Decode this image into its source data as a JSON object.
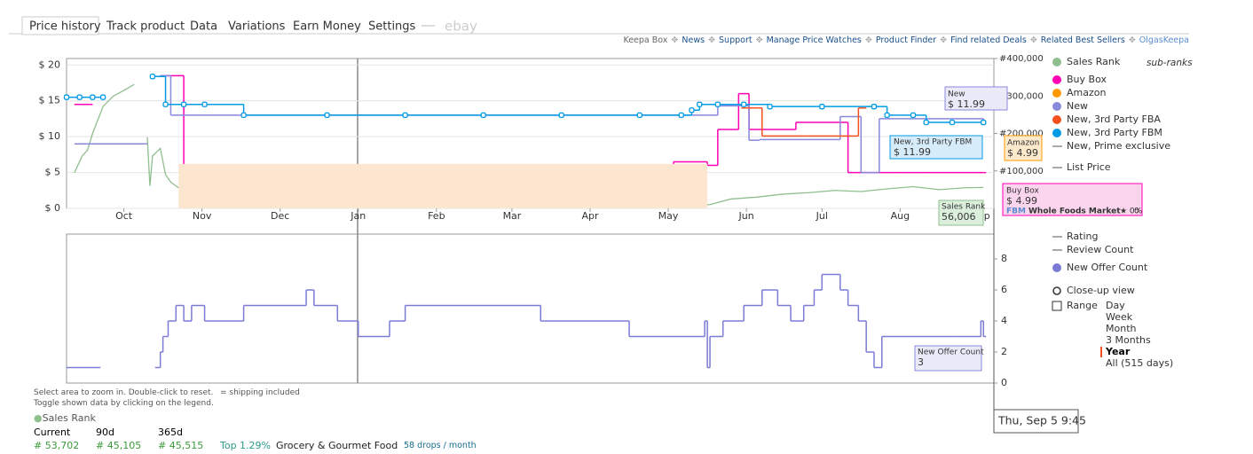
{
  "tabs": [
    "Price history",
    "Track product",
    "Data",
    "Variations",
    "Earn Money",
    "Settings",
    "ebay"
  ],
  "links": [
    "Keepa Box",
    "News",
    "Support",
    "Manage Price Watches",
    "Product Finder",
    "Find related Deals",
    "Related Best Sellers",
    "OlgasKeepa"
  ],
  "chart_data": [
    {
      "type": "line",
      "xlim": [
        0,
        356
      ],
      "xticks": [
        {
          "value": 22,
          "label": "Oct"
        },
        {
          "value": 52,
          "label": "Nov"
        },
        {
          "value": 82,
          "label": "Dec"
        },
        {
          "value": 112,
          "label": "Jan"
        },
        {
          "value": 142,
          "label": "Feb"
        },
        {
          "value": 171,
          "label": "Mar"
        },
        {
          "value": 201,
          "label": "Apr"
        },
        {
          "value": 231,
          "label": "May"
        },
        {
          "value": 261,
          "label": "Jun"
        },
        {
          "value": 290,
          "label": "Jul"
        },
        {
          "value": 320,
          "label": "Aug"
        },
        {
          "value": 351,
          "label": "Sep"
        }
      ],
      "ylim": [
        0,
        20.9
      ],
      "yticks": [
        {
          "value": 0,
          "label": "$ 0"
        },
        {
          "value": 5,
          "label": "$ 5"
        },
        {
          "value": 10,
          "label": "$ 10"
        },
        {
          "value": 15,
          "label": "$ 15"
        },
        {
          "value": 20,
          "label": "$ 20"
        }
      ],
      "y2lim": [
        0,
        400000
      ],
      "y2ticks": [
        {
          "value": 100000,
          "label": "#100,000"
        },
        {
          "value": 200000,
          "label": "#200,000"
        },
        {
          "value": 300000,
          "label": "#300,000"
        },
        {
          "value": 400000,
          "label": "#400,000"
        }
      ],
      "grid": true,
      "series": [
        {
          "name": "Sales Rank",
          "color": "#8fbf8f",
          "axis": "y2",
          "style": "line",
          "x": [
            3,
            6,
            8,
            10,
            14,
            18,
            22,
            26,
            29,
            31,
            32,
            33,
            36,
            38,
            40,
            44,
            48,
            52,
            55,
            60,
            70,
            90,
            120,
            160,
            200,
            240,
            247,
            255,
            265,
            275,
            285,
            295,
            305,
            315,
            325,
            335,
            345,
            352
          ],
          "values": [
            95000,
            140000,
            155000,
            200000,
            272000,
            300000,
            315000,
            331000,
            null,
            190000,
            60000,
            140000,
            160000,
            90000,
            70000,
            50000,
            40000,
            45000,
            25000,
            20000,
            15000,
            8000,
            6000,
            6000,
            7000,
            8000,
            10000,
            25000,
            30000,
            38000,
            42000,
            48000,
            45000,
            52000,
            58000,
            50000,
            55000,
            56006
          ]
        },
        {
          "name": "Buy Box",
          "color": "#ff00b4",
          "style": "step",
          "x": [
            3,
            9,
            10,
            36,
            45,
            220,
            221,
            230,
            233,
            246,
            248,
            250,
            258,
            262,
            270,
            280,
            300,
            320,
            330,
            352
          ],
          "values": [
            14.5,
            14.5,
            null,
            18.5,
            6,
            6,
            5,
            6,
            6.5,
            6,
            6,
            11,
            16,
            11,
            11,
            12,
            5,
            5,
            5,
            4.99
          ]
        },
        {
          "name": "Amazon",
          "color": "#ff9900",
          "fill": "#fde6cf",
          "style": "area",
          "x": [
            43,
            246
          ],
          "values": [
            6.2,
            6.2
          ]
        },
        {
          "name": "New",
          "color": "#8888dd",
          "style": "step",
          "x": [
            3,
            30,
            31,
            36,
            40,
            245,
            250,
            262,
            266,
            285,
            297,
            305,
            312,
            320,
            330,
            352
          ],
          "values": [
            9,
            9,
            null,
            18.5,
            13,
            13,
            14.3,
            9.5,
            9.6,
            9.6,
            12.8,
            5,
            12.5,
            12.5,
            12.5,
            11.99
          ]
        },
        {
          "name": "New, 3rd Party FBA",
          "color": "#f4511e",
          "style": "step",
          "x": [
            259,
            266,
            267,
            285,
            303,
            304,
            306
          ],
          "values": [
            14,
            14,
            10.1,
            10.1,
            10.1,
            14,
            14
          ]
        },
        {
          "name": "New, 3rd Party FBM",
          "color": "#039be5",
          "style": "markers",
          "x": [
            0,
            5,
            10,
            14,
            16,
            33,
            38,
            45,
            53,
            68,
            100,
            130,
            160,
            190,
            220,
            236,
            240,
            243,
            250,
            260,
            270,
            290,
            310,
            315,
            325,
            330,
            340,
            352
          ],
          "values": [
            15.5,
            15.5,
            15.5,
            15.5,
            null,
            18.4,
            14.5,
            14.5,
            14.5,
            13,
            13,
            13,
            13,
            13,
            13,
            13,
            13.7,
            14.5,
            14.5,
            14.5,
            14.2,
            14.2,
            14.2,
            13,
            13,
            12,
            12,
            11.99
          ]
        }
      ],
      "legend_extra": [
        "New, Prime exclusive",
        "List Price"
      ]
    },
    {
      "type": "line",
      "xlim": [
        0,
        356
      ],
      "ylim": [
        0,
        9.6
      ],
      "yticks": [
        0,
        2,
        4,
        6,
        8
      ],
      "grid": false,
      "series": [
        {
          "name": "New Offer Count",
          "color": "#7b7bd6",
          "style": "step",
          "x": [
            0,
            12,
            13,
            34,
            36,
            37,
            39,
            42,
            45,
            48,
            53,
            68,
            92,
            95,
            104,
            112,
            124,
            130,
            182,
            216,
            245,
            246,
            247,
            252,
            260,
            267,
            273,
            278,
            283,
            287,
            290,
            297,
            300,
            304,
            307,
            310,
            313,
            340,
            351,
            352
          ],
          "values": [
            1,
            1,
            null,
            1,
            2,
            3,
            4,
            5,
            4,
            5,
            4,
            5,
            6,
            5,
            4,
            3,
            4,
            5,
            4,
            3,
            4,
            1,
            3,
            4,
            5,
            6,
            5,
            4,
            5,
            6,
            7,
            6,
            5,
            4,
            2,
            1,
            3,
            3,
            4,
            3
          ]
        }
      ],
      "legend_extra": [
        "Rating",
        "Review Count"
      ]
    }
  ],
  "sub_ranks": "sub-ranks",
  "closeup": "Close-up view",
  "range_label": "Range",
  "ranges": [
    "Day",
    "Week",
    "Month",
    "3 Months",
    "Year",
    "All (515 days)"
  ],
  "range_selected": 4,
  "tooltips": {
    "new": {
      "title": "New",
      "price": "$ 11.99"
    },
    "fbm": {
      "title": "New, 3rd Party FBM",
      "price": "$ 11.99"
    },
    "amazon": {
      "title": "Amazon",
      "price": "$ 4.99"
    },
    "buybox": {
      "title": "Buy Box",
      "price": "$ 4.99",
      "tag": "FBM",
      "seller": "Whole Foods Market",
      "rating": "★ 0%",
      "count": "0"
    },
    "rank": {
      "title": "Sales Rank",
      "value": "56,006"
    },
    "offers": {
      "title": "New Offer Count",
      "value": "3"
    },
    "time": "Thu, Sep 5 9:45"
  },
  "footer": {
    "hint1": "Select area to zoom in. Double-click to reset.",
    "shipping": "= shipping included",
    "hint2": "Toggle shown data by clicking on the legend.",
    "stat_title": "Sales Rank",
    "headers": [
      "Current",
      "90d",
      "365d"
    ],
    "values": [
      "# 53,702",
      "# 45,105",
      "# 45,515"
    ],
    "top": "Top 1.29%",
    "category": "Grocery & Gourmet Food",
    "drops": "58 drops / month"
  }
}
